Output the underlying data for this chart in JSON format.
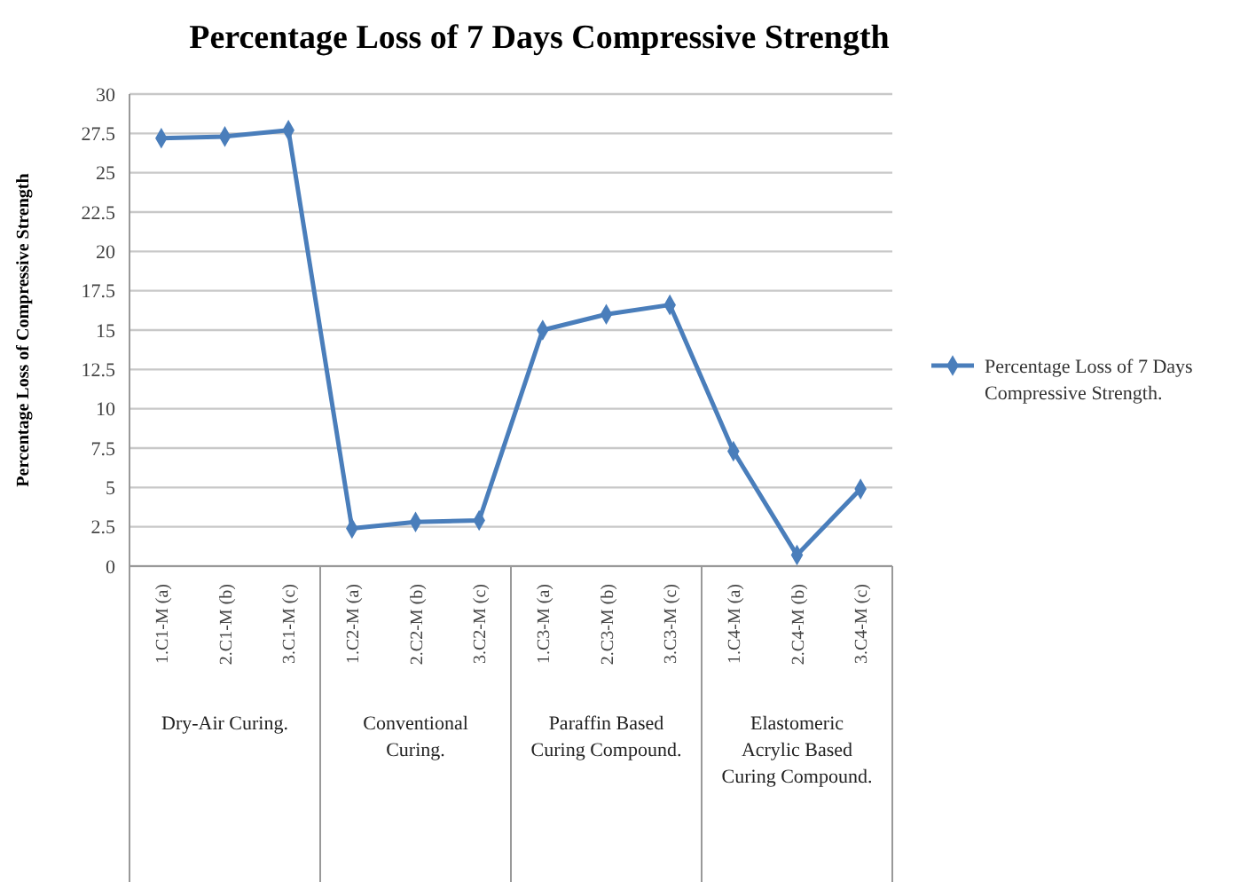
{
  "chart_data": {
    "type": "line",
    "title": "Percentage Loss of 7 Days Compressive Strength",
    "ylabel": "Percentage Loss of Compressive Strength",
    "categories": [
      "1.C1-M (a)",
      "2.C1-M (b)",
      "3.C1-M (c)",
      "1.C2-M (a)",
      "2.C2-M (b)",
      "3.C2-M (c)",
      "1.C3-M (a)",
      "2.C3-M (b)",
      "3.C3-M (c)",
      "1.C4-M (a)",
      "2.C4-M (b)",
      "3.C4-M (c)"
    ],
    "series": [
      {
        "name": "Percentage Loss of 7 Days Compressive Strength.",
        "color": "#4a7ebb",
        "values": [
          27.2,
          27.3,
          27.7,
          2.4,
          2.8,
          2.9,
          15.0,
          16.0,
          16.6,
          7.3,
          0.7,
          4.9
        ]
      }
    ],
    "ylim": [
      0,
      30
    ],
    "yticks": [
      0,
      2.5,
      5,
      7.5,
      10,
      12.5,
      15,
      17.5,
      20,
      22.5,
      25,
      27.5,
      30
    ],
    "annotations": [
      "Dry-Air Curing.",
      "Conventional Curing.",
      "Paraffin Based Curing Compound.",
      "Elastomeric Acrylic Based Curing Compound."
    ],
    "grid": "y",
    "legend": "right",
    "marker": "diamond",
    "line_style": "solid"
  }
}
